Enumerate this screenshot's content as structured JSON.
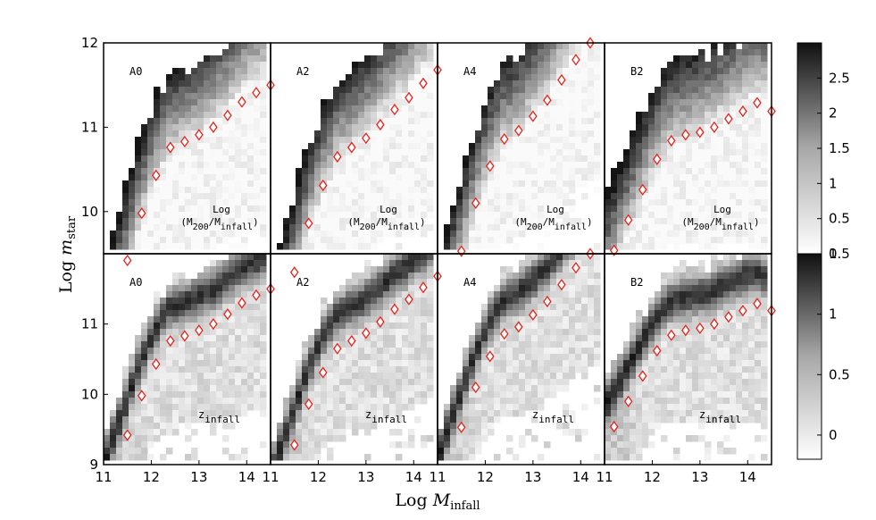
{
  "figure": {
    "xlabel_prefix": "Log ",
    "xlabel_var": "M",
    "xlabel_sub": "infall",
    "ylabel_prefix": "Log ",
    "ylabel_var": "m",
    "ylabel_sub": "star"
  },
  "chart_data": {
    "type": "heatmap",
    "xlabel": "Log M_infall",
    "ylabel": "Log m_star",
    "xlim": [
      11,
      14.5
    ],
    "xticks": [
      "11",
      "12",
      "13",
      "14"
    ],
    "panels": [
      "A0",
      "A2",
      "A4",
      "B2"
    ],
    "rows": [
      {
        "name": "top",
        "ylim": [
          9.5,
          12
        ],
        "yticks": [
          "10",
          "11",
          "12"
        ],
        "quantity": "Log (M_200/M_infall)",
        "quantity_line1": "Log",
        "quantity_line2": "(M",
        "quantity_sub1": "200",
        "quantity_mid": "/M",
        "quantity_sub2": "infall",
        "quantity_end": ")",
        "colorbar": {
          "range": [
            0,
            3
          ],
          "ticks": [
            "0",
            "0.5",
            "1",
            "1.5",
            "2",
            "2.5"
          ]
        }
      },
      {
        "name": "bottom",
        "ylim": [
          9,
          12
        ],
        "yticks": [
          "9",
          "10",
          "11"
        ],
        "quantity": "z_infall",
        "quantity_base": "z",
        "quantity_sub": "infall",
        "colorbar": {
          "range": [
            -0.2,
            1.5
          ],
          "ticks": [
            "0",
            "0.5",
            "1",
            "1.5"
          ]
        }
      }
    ],
    "median_markers": {
      "A0": {
        "x": [
          11.5,
          11.8,
          12.1,
          12.4,
          12.7,
          13.0,
          13.3,
          13.6,
          13.9,
          14.2,
          14.5
        ],
        "y": [
          9.42,
          9.98,
          10.43,
          10.76,
          10.83,
          10.91,
          11.0,
          11.14,
          11.3,
          11.41,
          11.5
        ]
      },
      "A2": {
        "x": [
          11.5,
          11.8,
          12.1,
          12.4,
          12.7,
          13.0,
          13.3,
          13.6,
          13.9,
          14.2,
          14.5
        ],
        "y": [
          9.28,
          9.86,
          10.31,
          10.65,
          10.76,
          10.87,
          11.03,
          11.21,
          11.35,
          11.52,
          11.68
        ]
      },
      "A4": {
        "x": [
          11.5,
          11.8,
          12.1,
          12.4,
          12.7,
          13.0,
          13.3,
          13.6,
          13.9,
          14.2
        ],
        "y": [
          9.53,
          10.1,
          10.54,
          10.86,
          10.96,
          11.13,
          11.32,
          11.56,
          11.8,
          12.0
        ]
      },
      "B2": {
        "x": [
          11.2,
          11.5,
          11.8,
          12.1,
          12.4,
          12.7,
          13.0,
          13.3,
          13.6,
          13.9,
          14.2,
          14.5
        ],
        "y": [
          9.54,
          9.9,
          10.26,
          10.62,
          10.84,
          10.91,
          10.94,
          11.0,
          11.1,
          11.19,
          11.29,
          11.19
        ]
      }
    }
  }
}
